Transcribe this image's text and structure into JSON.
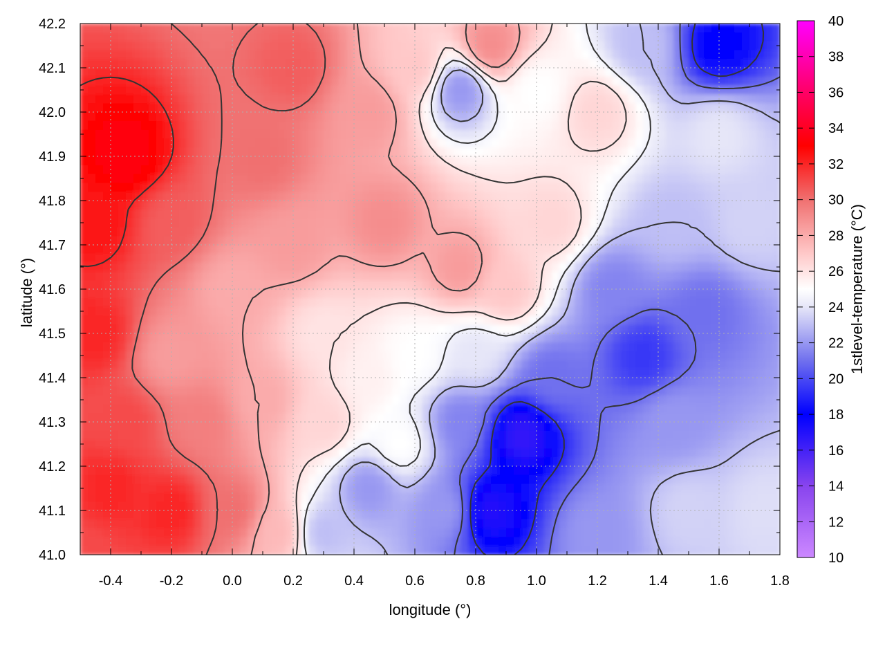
{
  "chart_data": {
    "type": "heatmap",
    "title": "",
    "xlabel": "longitude (°)",
    "ylabel": "latitude (°)",
    "colorbar_label": "1stlevel-temperature (°C)",
    "xlim": [
      -0.5,
      1.8
    ],
    "ylim": [
      41.0,
      42.2
    ],
    "x_ticks": [
      "-0.4",
      "-0.2",
      "0.0",
      "0.2",
      "0.4",
      "0.6",
      "0.8",
      "1.0",
      "1.2",
      "1.4",
      "1.6",
      "1.8"
    ],
    "x_tick_values": [
      -0.4,
      -0.2,
      0.0,
      0.2,
      0.4,
      0.6,
      0.8,
      1.0,
      1.2,
      1.4,
      1.6,
      1.8
    ],
    "y_ticks": [
      "41.0",
      "41.1",
      "41.2",
      "41.3",
      "41.4",
      "41.5",
      "41.6",
      "41.7",
      "41.8",
      "41.9",
      "42.0",
      "42.1",
      "42.2"
    ],
    "y_tick_values": [
      41.0,
      41.1,
      41.2,
      41.3,
      41.4,
      41.5,
      41.6,
      41.7,
      41.8,
      41.9,
      42.0,
      42.1,
      42.2
    ],
    "colorbar_range": [
      10,
      40
    ],
    "colorbar_ticks": [
      "10",
      "12",
      "14",
      "16",
      "18",
      "20",
      "22",
      "24",
      "26",
      "28",
      "30",
      "32",
      "34",
      "36",
      "38",
      "40"
    ],
    "colorbar_tick_values": [
      10,
      12,
      14,
      16,
      18,
      20,
      22,
      24,
      26,
      28,
      30,
      32,
      34,
      36,
      38,
      40
    ],
    "colormap": [
      {
        "value": 10,
        "color": "#cc88ff"
      },
      {
        "value": 14,
        "color": "#8844ee"
      },
      {
        "value": 18,
        "color": "#0000ff"
      },
      {
        "value": 21,
        "color": "#7070ee"
      },
      {
        "value": 24,
        "color": "#e6e6f8"
      },
      {
        "value": 25,
        "color": "#ffffff"
      },
      {
        "value": 27,
        "color": "#ffc8c8"
      },
      {
        "value": 30,
        "color": "#f07070"
      },
      {
        "value": 33,
        "color": "#ff0000"
      },
      {
        "value": 36,
        "color": "#ff0066"
      },
      {
        "value": 40,
        "color": "#ff00ff"
      }
    ],
    "grid": true,
    "contours": true,
    "field_samples": [
      {
        "lon": -0.5,
        "lat": 41.0,
        "t": 31
      },
      {
        "lon": -0.4,
        "lat": 41.15,
        "t": 32
      },
      {
        "lon": -0.2,
        "lat": 41.1,
        "t": 32
      },
      {
        "lon": 0.0,
        "lat": 41.1,
        "t": 30
      },
      {
        "lon": 0.15,
        "lat": 41.05,
        "t": 27.5
      },
      {
        "lon": 0.3,
        "lat": 41.05,
        "t": 23
      },
      {
        "lon": 0.45,
        "lat": 41.15,
        "t": 22
      },
      {
        "lon": 0.7,
        "lat": 41.1,
        "t": 22
      },
      {
        "lon": 0.85,
        "lat": 41.1,
        "t": 17
      },
      {
        "lon": 0.95,
        "lat": 41.27,
        "t": 16.5
      },
      {
        "lon": 1.2,
        "lat": 41.05,
        "t": 22
      },
      {
        "lon": 1.5,
        "lat": 41.1,
        "t": 23.5
      },
      {
        "lon": 1.75,
        "lat": 41.1,
        "t": 23.8
      },
      {
        "lon": 1.45,
        "lat": 41.3,
        "t": 22
      },
      {
        "lon": 1.35,
        "lat": 41.45,
        "t": 19.5
      },
      {
        "lon": 1.55,
        "lat": 41.55,
        "t": 21
      },
      {
        "lon": 1.25,
        "lat": 41.6,
        "t": 21.5
      },
      {
        "lon": 1.45,
        "lat": 41.75,
        "t": 23
      },
      {
        "lon": 1.7,
        "lat": 41.75,
        "t": 23.5
      },
      {
        "lon": 1.6,
        "lat": 41.95,
        "t": 24
      },
      {
        "lon": 1.6,
        "lat": 42.15,
        "t": 18
      },
      {
        "lon": 1.35,
        "lat": 42.15,
        "t": 23
      },
      {
        "lon": 1.2,
        "lat": 42.0,
        "t": 26.5
      },
      {
        "lon": 1.0,
        "lat": 42.05,
        "t": 25
      },
      {
        "lon": 0.75,
        "lat": 42.05,
        "t": 22
      },
      {
        "lon": 0.85,
        "lat": 42.15,
        "t": 29
      },
      {
        "lon": 0.6,
        "lat": 42.1,
        "t": 27
      },
      {
        "lon": 0.45,
        "lat": 42.0,
        "t": 28.5
      },
      {
        "lon": 0.2,
        "lat": 42.1,
        "t": 30.5
      },
      {
        "lon": 0.1,
        "lat": 41.9,
        "t": 30
      },
      {
        "lon": -0.35,
        "lat": 41.9,
        "t": 33.5
      },
      {
        "lon": -0.45,
        "lat": 41.75,
        "t": 32.5
      },
      {
        "lon": -0.2,
        "lat": 41.75,
        "t": 30.5
      },
      {
        "lon": -0.45,
        "lat": 41.5,
        "t": 32
      },
      {
        "lon": -0.2,
        "lat": 41.45,
        "t": 28.5
      },
      {
        "lon": 0.0,
        "lat": 41.6,
        "t": 28
      },
      {
        "lon": 0.2,
        "lat": 41.7,
        "t": 28.5
      },
      {
        "lon": 0.5,
        "lat": 41.75,
        "t": 29
      },
      {
        "lon": 0.75,
        "lat": 41.65,
        "t": 28.5
      },
      {
        "lon": 0.9,
        "lat": 41.6,
        "t": 27
      },
      {
        "lon": 1.05,
        "lat": 41.75,
        "t": 26.5
      },
      {
        "lon": 0.3,
        "lat": 41.5,
        "t": 26
      },
      {
        "lon": 0.45,
        "lat": 41.4,
        "t": 25.5
      },
      {
        "lon": 0.6,
        "lat": 41.45,
        "t": 25
      },
      {
        "lon": 0.8,
        "lat": 41.45,
        "t": 24
      },
      {
        "lon": 0.75,
        "lat": 41.3,
        "t": 21.5
      },
      {
        "lon": 1.05,
        "lat": 41.4,
        "t": 21
      },
      {
        "lon": 0.55,
        "lat": 41.25,
        "t": 25
      },
      {
        "lon": 0.3,
        "lat": 41.3,
        "t": 26.5
      },
      {
        "lon": 0.1,
        "lat": 41.35,
        "t": 28
      },
      {
        "lon": -0.1,
        "lat": 41.3,
        "t": 29.5
      },
      {
        "lon": -0.35,
        "lat": 41.3,
        "t": 31
      }
    ]
  }
}
